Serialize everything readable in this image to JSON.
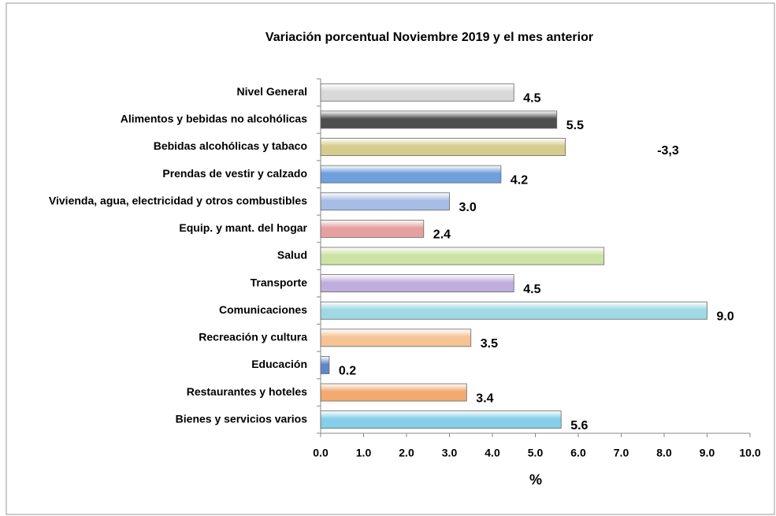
{
  "chart_data": {
    "type": "barh",
    "title": "Variación porcentual  Noviembre  2019 y el mes anterior",
    "xlabel": "%",
    "annotation": "-3,3",
    "categories": [
      "Nivel General",
      "Alimentos y bebidas no alcohólicas",
      "Bebidas alcohólicas y tabaco",
      "Prendas de vestir y calzado",
      "Vivienda, agua, electricidad y otros combustibles",
      "Equip. y mant. del hogar",
      "Salud",
      "Transporte",
      "Comunicaciones",
      "Recreación y cultura",
      "Educación",
      "Restaurantes y hoteles",
      "Bienes y servicios varios"
    ],
    "values": [
      4.5,
      5.5,
      5.7,
      4.2,
      3.0,
      2.4,
      6.6,
      4.5,
      9.0,
      3.5,
      0.2,
      3.4,
      5.6
    ],
    "value_labels": [
      "4.5",
      "5.5",
      null,
      "4.2",
      "3.0",
      "2.4",
      null,
      "4.5",
      "9.0",
      "3.5",
      "0.2",
      "3.4",
      "5.6"
    ],
    "colors": [
      "#d9d9d9",
      "#4d4d4d",
      "#d6cc8e",
      "#6f9fdc",
      "#a6bde6",
      "#e6a0a0",
      "#cde3a6",
      "#bfaedc",
      "#9fd9e4",
      "#f6c394",
      "#5f86cc",
      "#f2aa70",
      "#86cfe8"
    ],
    "xlim": [
      0,
      10
    ],
    "xticks": [
      {
        "value": 0,
        "label": "0.0"
      },
      {
        "value": 1,
        "label": "1.0"
      },
      {
        "value": 2,
        "label": "2.0"
      },
      {
        "value": 3,
        "label": "3.0"
      },
      {
        "value": 4,
        "label": "4.0"
      },
      {
        "value": 5,
        "label": "5.0"
      },
      {
        "value": 6,
        "label": "6.0"
      },
      {
        "value": 7,
        "label": "7.0"
      },
      {
        "value": 8,
        "label": "8.0"
      },
      {
        "value": 9,
        "label": "9.0"
      },
      {
        "value": 10,
        "label": "10.0"
      }
    ]
  }
}
